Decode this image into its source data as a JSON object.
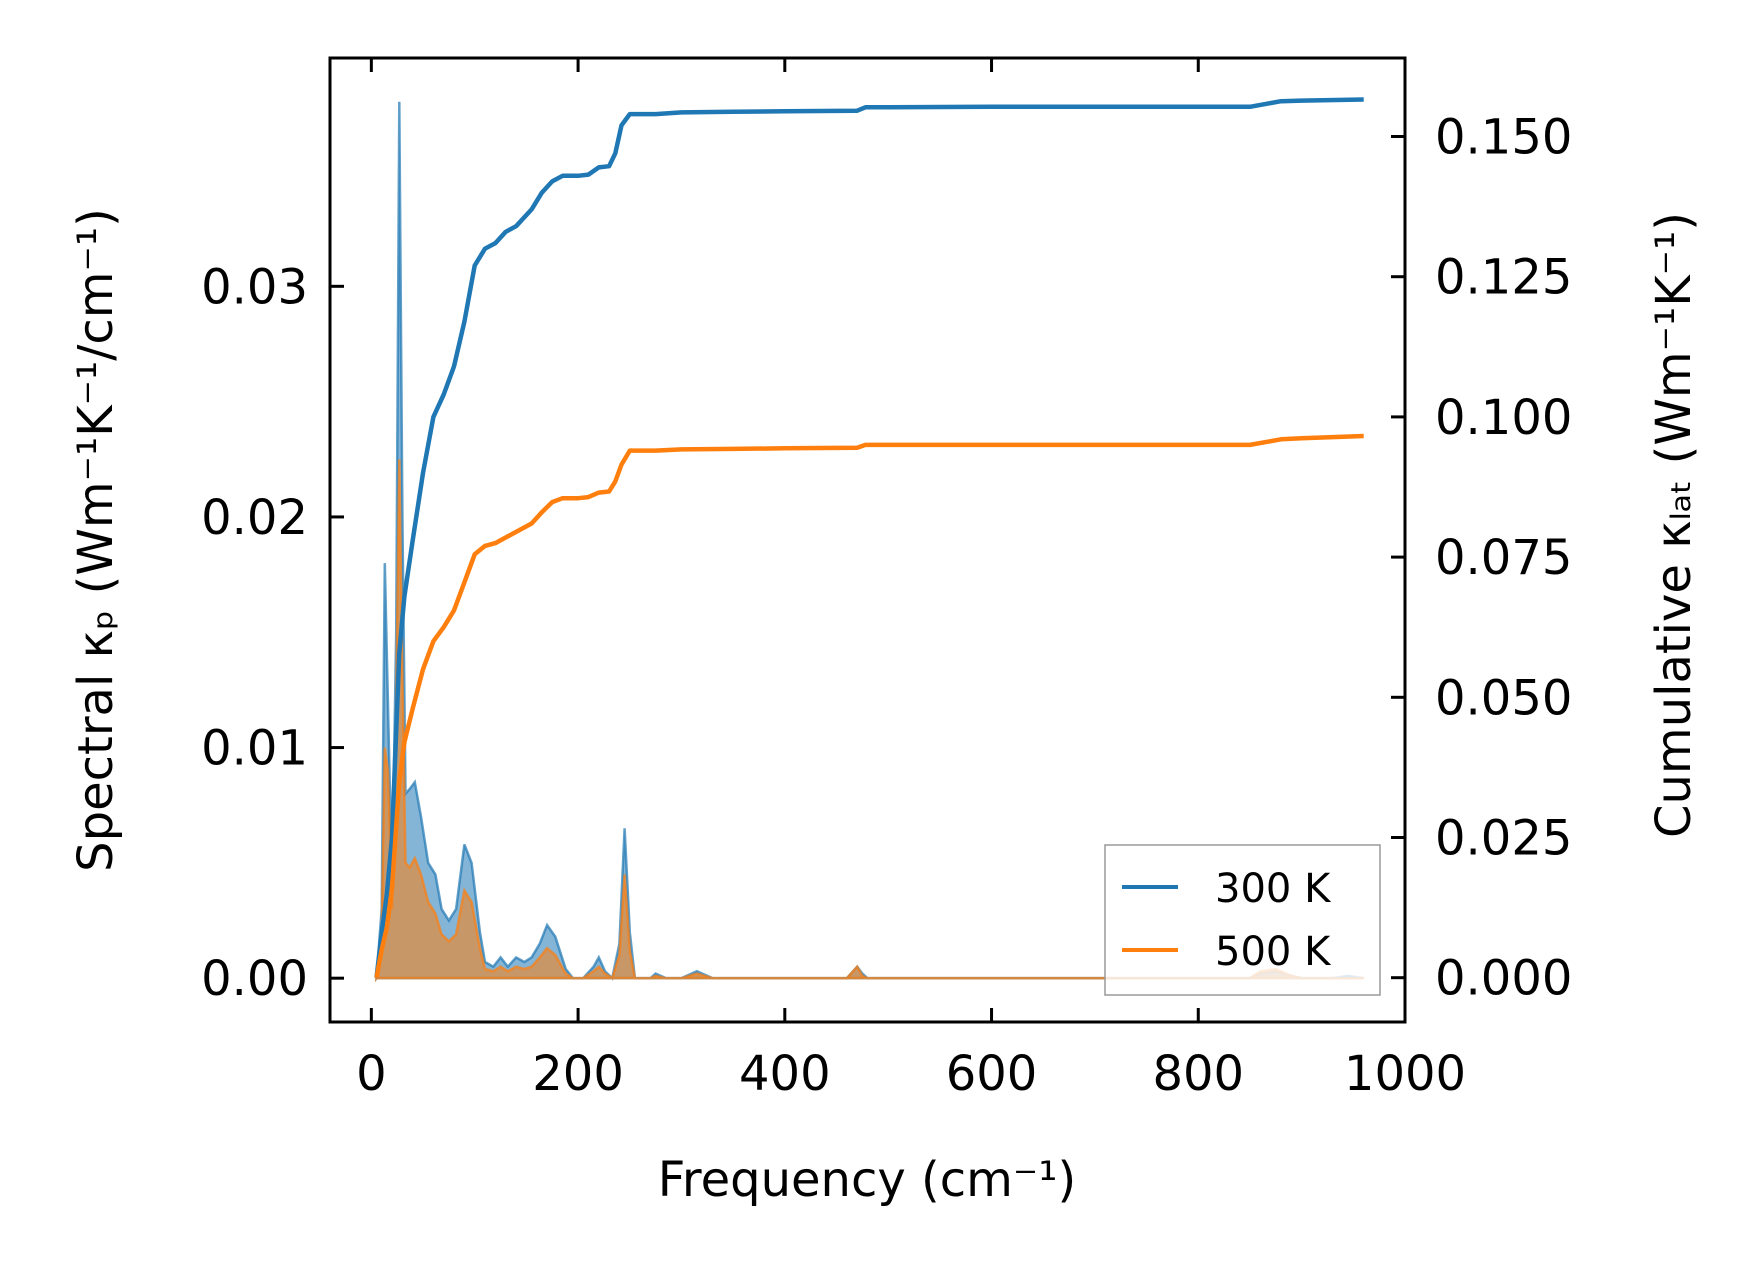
{
  "chart_data": {
    "type": "line",
    "xlabel": "Frequency (cm⁻¹)",
    "ylabel_left": "Spectral κₚ (Wm⁻¹K⁻¹/cm⁻¹)",
    "ylabel_right": "Cumulative κₗₐₜ (Wm⁻¹K⁻¹)",
    "xlim": [
      -40,
      1000
    ],
    "ylim_left": [
      -0.0019,
      0.0399
    ],
    "ylim_right": [
      -0.0079,
      0.164
    ],
    "x_ticks": [
      0,
      200,
      400,
      600,
      800,
      1000
    ],
    "y_left_ticks": [
      0.0,
      0.01,
      0.02,
      0.03
    ],
    "y_right_ticks": [
      0.0,
      0.025,
      0.05,
      0.075,
      0.1,
      0.125,
      0.15
    ],
    "x_tick_labels": [
      "0",
      "200",
      "400",
      "600",
      "800",
      "1000"
    ],
    "y_left_tick_labels": [
      "0.00",
      "0.01",
      "0.02",
      "0.03"
    ],
    "y_right_tick_labels": [
      "0.000",
      "0.025",
      "0.050",
      "0.075",
      "0.100",
      "0.125",
      "0.150"
    ],
    "legend_position": "lower-right",
    "grid": false,
    "series": [
      {
        "name": "300 K",
        "color": "#1f77b4",
        "spectral": [
          [
            5,
            0
          ],
          [
            10,
            0.003
          ],
          [
            13,
            0.018
          ],
          [
            16,
            0.012
          ],
          [
            20,
            0.004
          ],
          [
            24,
            0.015
          ],
          [
            27,
            0.038
          ],
          [
            30,
            0.02
          ],
          [
            33,
            0.008
          ],
          [
            37,
            0.0082
          ],
          [
            42,
            0.0085
          ],
          [
            48,
            0.007
          ],
          [
            55,
            0.005
          ],
          [
            62,
            0.0045
          ],
          [
            68,
            0.003
          ],
          [
            75,
            0.0025
          ],
          [
            82,
            0.003
          ],
          [
            90,
            0.0058
          ],
          [
            97,
            0.005
          ],
          [
            105,
            0.002
          ],
          [
            110,
            0.0007
          ],
          [
            118,
            0.0005
          ],
          [
            125,
            0.0009
          ],
          [
            132,
            0.0005
          ],
          [
            140,
            0.0009
          ],
          [
            148,
            0.0007
          ],
          [
            155,
            0.0009
          ],
          [
            163,
            0.0015
          ],
          [
            170,
            0.0023
          ],
          [
            178,
            0.0018
          ],
          [
            188,
            0.0004
          ],
          [
            195,
            0
          ],
          [
            205,
            0
          ],
          [
            215,
            0.0005
          ],
          [
            220,
            0.0009
          ],
          [
            226,
            0.0003
          ],
          [
            233,
            0
          ],
          [
            240,
            0.0015
          ],
          [
            245,
            0.0065
          ],
          [
            250,
            0.002
          ],
          [
            255,
            0
          ],
          [
            270,
            0
          ],
          [
            275,
            0.0002
          ],
          [
            285,
            0
          ],
          [
            300,
            0
          ],
          [
            315,
            0.0003
          ],
          [
            330,
            0
          ],
          [
            350,
            0
          ],
          [
            400,
            0
          ],
          [
            460,
            0
          ],
          [
            470,
            0.0005
          ],
          [
            475,
            0.0002
          ],
          [
            480,
            0
          ],
          [
            600,
            0
          ],
          [
            850,
            0
          ],
          [
            860,
            0.0002
          ],
          [
            875,
            0.0003
          ],
          [
            890,
            0.0001
          ],
          [
            900,
            0
          ],
          [
            930,
            0
          ],
          [
            945,
            0.0001
          ],
          [
            960,
            0
          ]
        ],
        "cumulative": [
          [
            5,
            0
          ],
          [
            10,
            0.008
          ],
          [
            15,
            0.015
          ],
          [
            20,
            0.025
          ],
          [
            27,
            0.058
          ],
          [
            32,
            0.068
          ],
          [
            40,
            0.078
          ],
          [
            50,
            0.09
          ],
          [
            60,
            0.1
          ],
          [
            70,
            0.104
          ],
          [
            80,
            0.109
          ],
          [
            90,
            0.117
          ],
          [
            100,
            0.127
          ],
          [
            110,
            0.13
          ],
          [
            120,
            0.131
          ],
          [
            130,
            0.133
          ],
          [
            140,
            0.134
          ],
          [
            155,
            0.137
          ],
          [
            165,
            0.14
          ],
          [
            175,
            0.142
          ],
          [
            185,
            0.143
          ],
          [
            200,
            0.143
          ],
          [
            210,
            0.1432
          ],
          [
            220,
            0.1445
          ],
          [
            230,
            0.1447
          ],
          [
            236,
            0.147
          ],
          [
            242,
            0.152
          ],
          [
            250,
            0.154
          ],
          [
            275,
            0.154
          ],
          [
            300,
            0.1543
          ],
          [
            350,
            0.1544
          ],
          [
            400,
            0.1545
          ],
          [
            470,
            0.1546
          ],
          [
            478,
            0.1552
          ],
          [
            600,
            0.1553
          ],
          [
            850,
            0.1553
          ],
          [
            880,
            0.1563
          ],
          [
            900,
            0.1564
          ],
          [
            960,
            0.1566
          ]
        ]
      },
      {
        "name": "500 K",
        "color": "#ff7f0e",
        "spectral": [
          [
            5,
            0
          ],
          [
            10,
            0.002
          ],
          [
            13,
            0.01
          ],
          [
            16,
            0.009
          ],
          [
            20,
            0.003
          ],
          [
            24,
            0.012
          ],
          [
            27,
            0.0225
          ],
          [
            30,
            0.013
          ],
          [
            33,
            0.005
          ],
          [
            37,
            0.0048
          ],
          [
            42,
            0.0052
          ],
          [
            48,
            0.0045
          ],
          [
            55,
            0.0033
          ],
          [
            62,
            0.0028
          ],
          [
            68,
            0.0019
          ],
          [
            75,
            0.0016
          ],
          [
            82,
            0.0019
          ],
          [
            90,
            0.0038
          ],
          [
            97,
            0.0033
          ],
          [
            105,
            0.0013
          ],
          [
            110,
            0.0004
          ],
          [
            118,
            0.0003
          ],
          [
            125,
            0.0005
          ],
          [
            132,
            0.0003
          ],
          [
            140,
            0.0005
          ],
          [
            148,
            0.0004
          ],
          [
            155,
            0.0005
          ],
          [
            163,
            0.0009
          ],
          [
            170,
            0.0013
          ],
          [
            178,
            0.001
          ],
          [
            188,
            0.0002
          ],
          [
            195,
            0
          ],
          [
            205,
            0
          ],
          [
            215,
            0.0003
          ],
          [
            220,
            0.0005
          ],
          [
            226,
            0.0002
          ],
          [
            233,
            0
          ],
          [
            240,
            0.001
          ],
          [
            245,
            0.0045
          ],
          [
            250,
            0.0012
          ],
          [
            255,
            0
          ],
          [
            270,
            0
          ],
          [
            275,
            0.0001
          ],
          [
            285,
            0
          ],
          [
            300,
            0
          ],
          [
            315,
            0.0002
          ],
          [
            330,
            0
          ],
          [
            400,
            0
          ],
          [
            460,
            0
          ],
          [
            470,
            0.0005
          ],
          [
            475,
            0.0001
          ],
          [
            480,
            0
          ],
          [
            600,
            0
          ],
          [
            850,
            0
          ],
          [
            860,
            0.0003
          ],
          [
            875,
            0.0004
          ],
          [
            890,
            0.0001
          ],
          [
            900,
            0
          ],
          [
            960,
            0
          ]
        ],
        "cumulative": [
          [
            5,
            0
          ],
          [
            10,
            0.005
          ],
          [
            15,
            0.009
          ],
          [
            20,
            0.016
          ],
          [
            27,
            0.035
          ],
          [
            32,
            0.042
          ],
          [
            40,
            0.048
          ],
          [
            50,
            0.055
          ],
          [
            60,
            0.06
          ],
          [
            70,
            0.0625
          ],
          [
            80,
            0.0655
          ],
          [
            90,
            0.0705
          ],
          [
            100,
            0.0755
          ],
          [
            110,
            0.077
          ],
          [
            120,
            0.0775
          ],
          [
            130,
            0.0785
          ],
          [
            140,
            0.0795
          ],
          [
            155,
            0.081
          ],
          [
            165,
            0.083
          ],
          [
            175,
            0.0848
          ],
          [
            185,
            0.0855
          ],
          [
            200,
            0.0855
          ],
          [
            210,
            0.0857
          ],
          [
            220,
            0.0865
          ],
          [
            230,
            0.0867
          ],
          [
            236,
            0.0885
          ],
          [
            242,
            0.0915
          ],
          [
            250,
            0.094
          ],
          [
            275,
            0.094
          ],
          [
            300,
            0.0942
          ],
          [
            350,
            0.0943
          ],
          [
            400,
            0.0944
          ],
          [
            470,
            0.0945
          ],
          [
            478,
            0.095
          ],
          [
            600,
            0.095
          ],
          [
            850,
            0.095
          ],
          [
            880,
            0.096
          ],
          [
            900,
            0.0962
          ],
          [
            960,
            0.0966
          ]
        ]
      }
    ]
  }
}
